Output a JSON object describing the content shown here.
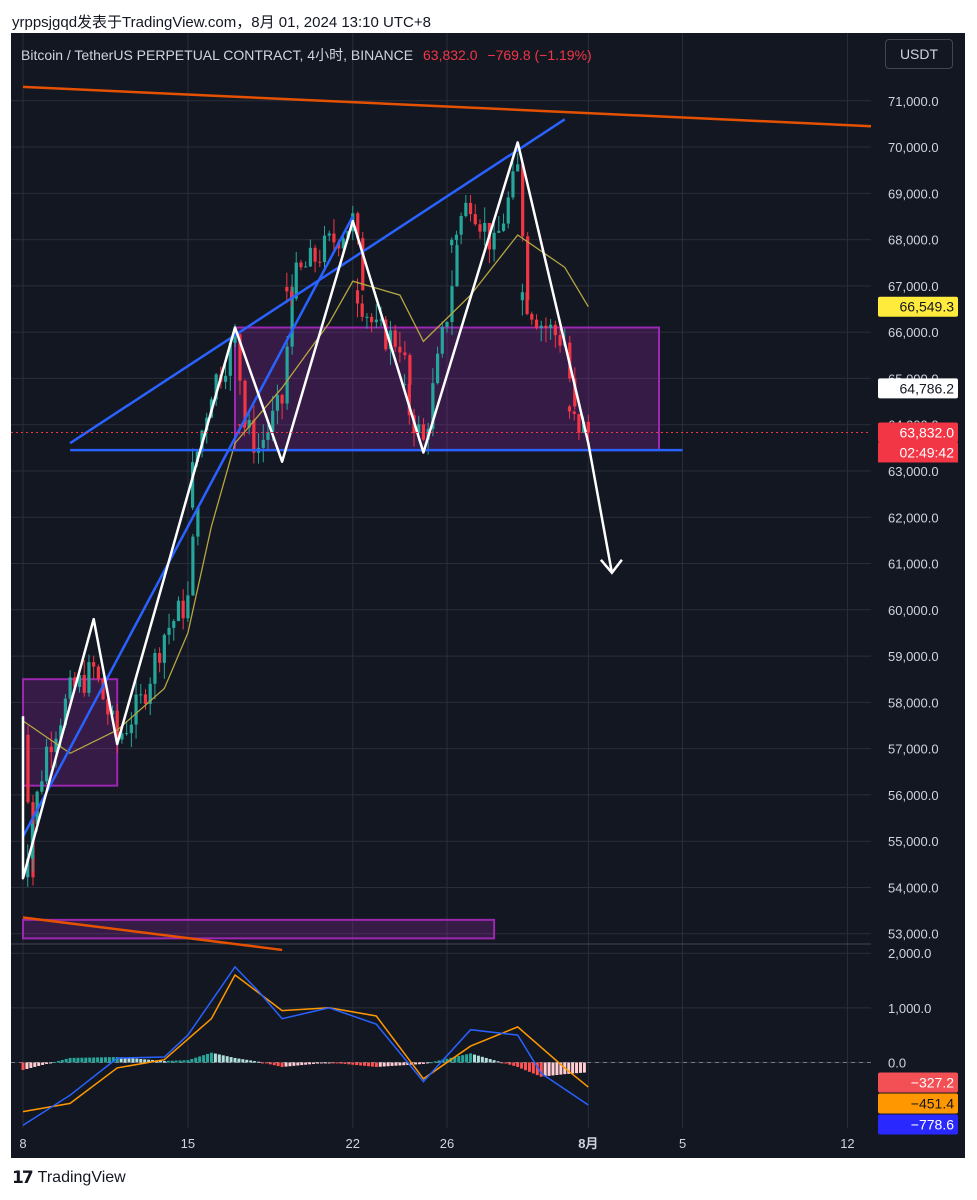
{
  "attribution": "yrppsjgqd发表于TradingView.com，8月 01, 2024 13:10 UTC+8",
  "header": {
    "symbol_line": "Bitcoin / TetherUS PERPETUAL CONTRACT, 4小时, BINANCE",
    "price": "63,832.0",
    "change": "−769.8 (−1.19%)"
  },
  "currency_button": "USDT",
  "footer": {
    "logo_icon": "tradingview-logo-icon",
    "brand": "TradingView"
  },
  "colors": {
    "background": "#131722",
    "grid": "#2a2e39",
    "text": "#d1d4dc",
    "bull": "#26a69a",
    "bear": "#f23645",
    "trendline_blue": "#2962ff",
    "trendline_orange": "#e65100",
    "zone_purple": "#9c27b0",
    "ma": "#b5a642",
    "macd": "#2962ff",
    "signal": "#ff9800"
  },
  "chart_data": [
    {
      "type": "candlestick",
      "title": "Bitcoin / TetherUS PERPETUAL CONTRACT, 4小时, BINANCE",
      "x_ticks": [
        "8",
        "15",
        "22",
        "26",
        "8月",
        "5",
        "12"
      ],
      "y_ticks": [
        "53,000.0",
        "54,000.0",
        "55,000.0",
        "56,000.0",
        "57,000.0",
        "58,000.0",
        "59,000.0",
        "60,000.0",
        "61,000.0",
        "62,000.0",
        "63,000.0",
        "64,000.0",
        "65,000.0",
        "66,000.0",
        "67,000.0",
        "68,000.0",
        "69,000.0",
        "70,000.0",
        "71,000.0"
      ],
      "ylim": [
        52800,
        71600
      ],
      "xlim": [
        "2024-07-08",
        "2024-08-13"
      ],
      "grid": true,
      "price_path": [
        {
          "x": "2024-07-08",
          "y": 57300
        },
        {
          "x": "2024-07-08",
          "y": 54400
        },
        {
          "x": "2024-07-09",
          "y": 57000
        },
        {
          "x": "2024-07-10",
          "y": 58200
        },
        {
          "x": "2024-07-11",
          "y": 58700
        },
        {
          "x": "2024-07-12",
          "y": 57200
        },
        {
          "x": "2024-07-13",
          "y": 58000
        },
        {
          "x": "2024-07-14",
          "y": 59500
        },
        {
          "x": "2024-07-15",
          "y": 60200
        },
        {
          "x": "2024-07-15",
          "y": 62500
        },
        {
          "x": "2024-07-16",
          "y": 64800
        },
        {
          "x": "2024-07-17",
          "y": 65800
        },
        {
          "x": "2024-07-17",
          "y": 64300
        },
        {
          "x": "2024-07-18",
          "y": 63500
        },
        {
          "x": "2024-07-19",
          "y": 64500
        },
        {
          "x": "2024-07-19",
          "y": 66800
        },
        {
          "x": "2024-07-20",
          "y": 67400
        },
        {
          "x": "2024-07-21",
          "y": 67900
        },
        {
          "x": "2024-07-22",
          "y": 68400
        },
        {
          "x": "2024-07-22",
          "y": 67100
        },
        {
          "x": "2024-07-23",
          "y": 66000
        },
        {
          "x": "2024-07-24",
          "y": 65800
        },
        {
          "x": "2024-07-24",
          "y": 64800
        },
        {
          "x": "2024-07-25",
          "y": 63600
        },
        {
          "x": "2024-07-26",
          "y": 66400
        },
        {
          "x": "2024-07-26",
          "y": 67800
        },
        {
          "x": "2024-07-27",
          "y": 68900
        },
        {
          "x": "2024-07-28",
          "y": 67800
        },
        {
          "x": "2024-07-29",
          "y": 69500
        },
        {
          "x": "2024-07-29",
          "y": 67000
        },
        {
          "x": "2024-07-30",
          "y": 66200
        },
        {
          "x": "2024-07-31",
          "y": 65800
        },
        {
          "x": "2024-07-31",
          "y": 64200
        },
        {
          "x": "2024-08-01",
          "y": 63832
        }
      ],
      "moving_average": [
        {
          "x": "2024-07-08",
          "y": 57600
        },
        {
          "x": "2024-07-10",
          "y": 56900
        },
        {
          "x": "2024-07-12",
          "y": 57400
        },
        {
          "x": "2024-07-14",
          "y": 58300
        },
        {
          "x": "2024-07-15",
          "y": 59500
        },
        {
          "x": "2024-07-16",
          "y": 61800
        },
        {
          "x": "2024-07-17",
          "y": 63600
        },
        {
          "x": "2024-07-19",
          "y": 64800
        },
        {
          "x": "2024-07-21",
          "y": 66200
        },
        {
          "x": "2024-07-22",
          "y": 67100
        },
        {
          "x": "2024-07-24",
          "y": 66800
        },
        {
          "x": "2024-07-25",
          "y": 65800
        },
        {
          "x": "2024-07-27",
          "y": 66800
        },
        {
          "x": "2024-07-29",
          "y": 68100
        },
        {
          "x": "2024-07-31",
          "y": 67400
        },
        {
          "x": "2024-08-01",
          "y": 66549.3
        }
      ],
      "trendlines_blue": [
        {
          "x1": "2024-07-10",
          "y1": 63600,
          "x2": "2024-07-31",
          "y2": 70600
        },
        {
          "x1": "2024-07-08",
          "y1": 55100,
          "x2": "2024-07-22",
          "y2": 68500
        },
        {
          "x1": "2024-07-10",
          "y1": 63450,
          "x2": "2024-08-05",
          "y2": 63450
        }
      ],
      "trendlines_orange": [
        {
          "x1": "2024-07-08",
          "y1": 71300,
          "x2": "2024-08-13",
          "y2": 70450
        },
        {
          "x1": "2024-07-08",
          "y1": 53350,
          "x2": "2024-07-19",
          "y2": 52650
        }
      ],
      "zones": [
        {
          "x1": "2024-07-17",
          "x2": "2024-08-04",
          "y1": 63450,
          "y2": 66100
        },
        {
          "x1": "2024-07-08",
          "x2": "2024-07-12",
          "y1": 56200,
          "y2": 58500
        },
        {
          "x1": "2024-07-08",
          "x2": "2024-07-28",
          "y1": 52900,
          "y2": 53300
        }
      ],
      "pattern_path": [
        {
          "x": "2024-07-08",
          "y": 57700
        },
        {
          "x": "2024-07-08",
          "y": 54200
        },
        {
          "x": "2024-07-11",
          "y": 59800
        },
        {
          "x": "2024-07-12",
          "y": 57100
        },
        {
          "x": "2024-07-17",
          "y": 66100
        },
        {
          "x": "2024-07-19",
          "y": 63200
        },
        {
          "x": "2024-07-22",
          "y": 68400
        },
        {
          "x": "2024-07-25",
          "y": 63400
        },
        {
          "x": "2024-07-29",
          "y": 70100
        },
        {
          "x": "2024-08-01",
          "y": 63600
        },
        {
          "x": "2024-08-02",
          "y": 60800
        }
      ],
      "price_labels": [
        {
          "label": "66,549.3",
          "value": 66549.3,
          "role": "moving-average"
        },
        {
          "label": "64,786.2",
          "value": 64786.2,
          "role": "reference"
        },
        {
          "label": "63,832.0",
          "value": 63832.0,
          "role": "last-price"
        }
      ],
      "countdown": "02:49:42"
    },
    {
      "type": "line",
      "title": "MACD",
      "y_ticks": [
        "0.0",
        "1,000.0",
        "2,000.0"
      ],
      "ylim": [
        -1200,
        2150
      ],
      "grid": true,
      "series": [
        {
          "name": "MACD",
          "values": [
            {
              "x": "2024-07-08",
              "y": -1150
            },
            {
              "x": "2024-07-10",
              "y": -600
            },
            {
              "x": "2024-07-12",
              "y": 80
            },
            {
              "x": "2024-07-14",
              "y": 100
            },
            {
              "x": "2024-07-15",
              "y": 500
            },
            {
              "x": "2024-07-17",
              "y": 1750
            },
            {
              "x": "2024-07-18",
              "y": 1300
            },
            {
              "x": "2024-07-19",
              "y": 800
            },
            {
              "x": "2024-07-21",
              "y": 1000
            },
            {
              "x": "2024-07-23",
              "y": 700
            },
            {
              "x": "2024-07-25",
              "y": -350
            },
            {
              "x": "2024-07-27",
              "y": 600
            },
            {
              "x": "2024-07-29",
              "y": 500
            },
            {
              "x": "2024-07-30",
              "y": -200
            },
            {
              "x": "2024-08-01",
              "y": -778.6
            }
          ]
        },
        {
          "name": "Signal",
          "values": [
            {
              "x": "2024-07-08",
              "y": -900
            },
            {
              "x": "2024-07-10",
              "y": -750
            },
            {
              "x": "2024-07-12",
              "y": -100
            },
            {
              "x": "2024-07-14",
              "y": 50
            },
            {
              "x": "2024-07-16",
              "y": 800
            },
            {
              "x": "2024-07-17",
              "y": 1600
            },
            {
              "x": "2024-07-19",
              "y": 950
            },
            {
              "x": "2024-07-21",
              "y": 1000
            },
            {
              "x": "2024-07-23",
              "y": 850
            },
            {
              "x": "2024-07-25",
              "y": -300
            },
            {
              "x": "2024-07-27",
              "y": 300
            },
            {
              "x": "2024-07-29",
              "y": 650
            },
            {
              "x": "2024-07-31",
              "y": -100
            },
            {
              "x": "2024-08-01",
              "y": -451.4
            }
          ]
        }
      ],
      "price_labels": [
        {
          "label": "−327.2",
          "value": -327.2,
          "role": "histogram"
        },
        {
          "label": "−451.4",
          "value": -451.4,
          "role": "signal"
        },
        {
          "label": "−778.6",
          "value": -778.6,
          "role": "macd"
        }
      ]
    }
  ]
}
